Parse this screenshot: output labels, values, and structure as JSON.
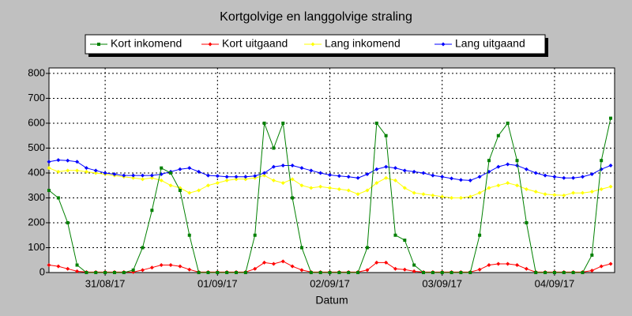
{
  "chart_data": {
    "type": "line",
    "title": "Kortgolvige en langgolvige straling",
    "xlabel": "Datum",
    "x": [
      0.5,
      0.5833,
      0.6667,
      0.75,
      0.8333,
      0.9167,
      1,
      1.0833,
      1.1667,
      1.25,
      1.3333,
      1.4167,
      1.5,
      1.5833,
      1.6667,
      1.75,
      1.8333,
      1.9167,
      2,
      2.0833,
      2.1667,
      2.25,
      2.3333,
      2.4167,
      2.5,
      2.5833,
      2.6667,
      2.75,
      2.8333,
      2.9167,
      3,
      3.0833,
      3.1667,
      3.25,
      3.3333,
      3.4167,
      3.5,
      3.5833,
      3.6667,
      3.75,
      3.8333,
      3.9167,
      4,
      4.0833,
      4.1667,
      4.25,
      4.3333,
      4.4167,
      4.5,
      4.5833,
      4.6667,
      4.75,
      4.8333,
      4.9167,
      5,
      5.0833,
      5.1667,
      5.25,
      5.3333,
      5.4167,
      5.5
    ],
    "xlim": [
      0.5,
      5.535
    ],
    "xticks": [
      {
        "value": 1,
        "label": "31/08/17"
      },
      {
        "value": 2,
        "label": "01/09/17"
      },
      {
        "value": 3,
        "label": "02/09/17"
      },
      {
        "value": 4,
        "label": "03/09/17"
      },
      {
        "value": 5,
        "label": "04/09/17"
      }
    ],
    "ylim": [
      0,
      822
    ],
    "yticks": [
      0,
      100,
      200,
      300,
      400,
      500,
      600,
      700,
      800
    ],
    "grid": true,
    "legend": "top",
    "series": [
      {
        "name": "Kort inkomend",
        "color": "#008000",
        "marker": "square",
        "values": [
          330,
          300,
          200,
          30,
          0,
          0,
          0,
          0,
          0,
          10,
          100,
          250,
          420,
          400,
          330,
          150,
          0,
          0,
          0,
          0,
          0,
          0,
          150,
          600,
          500,
          600,
          300,
          100,
          0,
          0,
          0,
          0,
          0,
          0,
          100,
          600,
          550,
          150,
          130,
          30,
          0,
          0,
          0,
          0,
          0,
          0,
          150,
          450,
          550,
          600,
          450,
          200,
          0,
          0,
          0,
          0,
          0,
          0,
          70,
          450,
          620
        ]
      },
      {
        "name": "Kort uitgaand",
        "color": "#ff0000",
        "marker": "diamond",
        "values": [
          30,
          25,
          15,
          5,
          2,
          2,
          2,
          2,
          2,
          2,
          10,
          20,
          30,
          30,
          25,
          12,
          2,
          2,
          2,
          2,
          2,
          2,
          15,
          40,
          35,
          45,
          25,
          10,
          2,
          2,
          2,
          2,
          2,
          2,
          10,
          40,
          40,
          15,
          12,
          5,
          2,
          2,
          2,
          2,
          2,
          2,
          12,
          30,
          35,
          35,
          30,
          15,
          2,
          2,
          2,
          2,
          2,
          2,
          8,
          25,
          35
        ]
      },
      {
        "name": "Lang inkomend",
        "color": "#ffff00",
        "marker": "diamond",
        "values": [
          420,
          405,
          410,
          410,
          405,
          400,
          395,
          390,
          385,
          380,
          375,
          380,
          370,
          350,
          340,
          320,
          330,
          350,
          360,
          370,
          375,
          375,
          380,
          390,
          370,
          360,
          375,
          350,
          340,
          345,
          340,
          335,
          330,
          315,
          330,
          360,
          380,
          370,
          340,
          320,
          315,
          310,
          305,
          300,
          300,
          305,
          320,
          340,
          350,
          360,
          350,
          335,
          325,
          315,
          312,
          310,
          320,
          320,
          325,
          335,
          345
        ]
      },
      {
        "name": "Lang uitgaand",
        "color": "#0000ff",
        "marker": "diamond",
        "values": [
          445,
          452,
          450,
          445,
          420,
          410,
          400,
          395,
          390,
          390,
          390,
          390,
          395,
          405,
          415,
          420,
          405,
          390,
          388,
          385,
          385,
          385,
          388,
          400,
          425,
          430,
          430,
          420,
          410,
          400,
          392,
          388,
          385,
          380,
          395,
          415,
          425,
          420,
          410,
          405,
          400,
          390,
          385,
          378,
          372,
          370,
          385,
          405,
          425,
          435,
          430,
          415,
          400,
          390,
          385,
          380,
          380,
          385,
          395,
          415,
          430
        ]
      }
    ]
  }
}
